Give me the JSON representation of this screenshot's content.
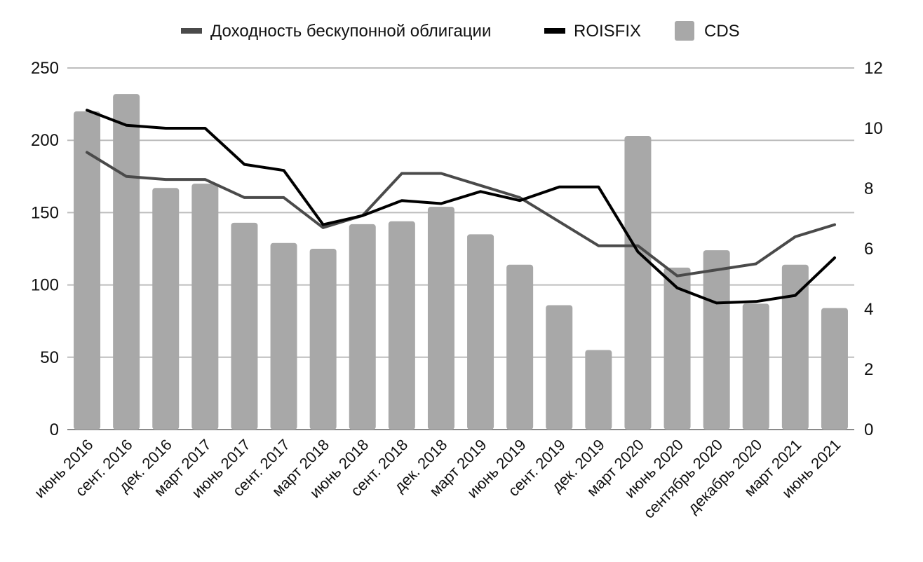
{
  "chart_data": {
    "type": "bar",
    "categories": [
      "июнь 2016",
      "сент. 2016",
      "дек. 2016",
      "март 2017",
      "июнь 2017",
      "сент. 2017",
      "март 2018",
      "июнь 2018",
      "сент. 2018",
      "дек. 2018",
      "март 2019",
      "июнь 2019",
      "сент. 2019",
      "дек. 2019",
      "март 2020",
      "июнь 2020",
      "сентябрь 2020",
      "декабрь 2020",
      "март 2021",
      "июнь 2021"
    ],
    "series": [
      {
        "name": "CDS",
        "type": "bar",
        "axis": "left",
        "color": "#a8a8a8",
        "values": [
          220,
          232,
          167,
          170,
          143,
          129,
          125,
          142,
          144,
          154,
          135,
          114,
          86,
          55,
          203,
          112,
          124,
          87,
          114,
          84
        ]
      },
      {
        "name": "Доходность бескупонной облигации",
        "type": "line",
        "axis": "right",
        "color": "#4a4a4a",
        "values": [
          9.2,
          8.4,
          8.3,
          8.3,
          7.7,
          7.7,
          6.7,
          7.1,
          8.5,
          8.5,
          8.1,
          7.7,
          6.9,
          6.1,
          6.1,
          5.1,
          5.3,
          5.5,
          6.4,
          6.8
        ]
      },
      {
        "name": "ROISFIX",
        "type": "line",
        "axis": "right",
        "color": "#000000",
        "values": [
          10.6,
          10.1,
          10.0,
          10.0,
          8.8,
          8.6,
          6.8,
          7.1,
          7.6,
          7.5,
          7.9,
          7.6,
          8.05,
          8.05,
          5.9,
          4.7,
          4.2,
          4.25,
          4.45,
          5.7
        ]
      }
    ],
    "legend": [
      "Доходность бескупонной облигации",
      "ROISFIX",
      "CDS"
    ],
    "legend_position": "top",
    "y_left": {
      "ylim": [
        0,
        250
      ],
      "ticks": [
        "0",
        "50",
        "100",
        "150",
        "200",
        "250"
      ]
    },
    "y_right": {
      "ylim": [
        0,
        12
      ],
      "ticks": [
        "0",
        "2",
        "4",
        "6",
        "8",
        "10",
        "12"
      ]
    },
    "grid": true
  }
}
